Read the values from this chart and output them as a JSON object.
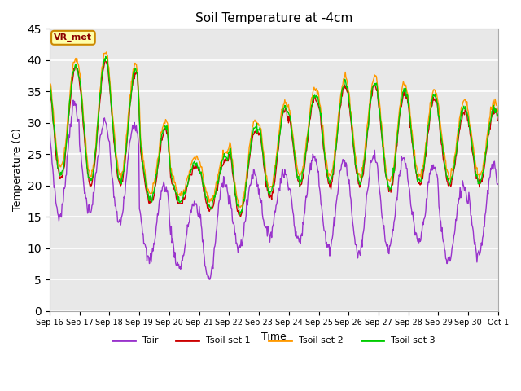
{
  "title": "Soil Temperature at -4cm",
  "xlabel": "Time",
  "ylabel": "Temperature (C)",
  "ylim": [
    0,
    45
  ],
  "annotation": "VR_met",
  "line_colors": {
    "Tair": "#9933cc",
    "Tsoil set 1": "#cc0000",
    "Tsoil set 2": "#ff9900",
    "Tsoil set 3": "#00cc00"
  },
  "xtick_labels": [
    "Sep 16",
    "Sep 17",
    "Sep 18",
    "Sep 19",
    "Sep 20",
    "Sep 21",
    "Sep 22",
    "Sep 23",
    "Sep 24",
    "Sep 25",
    "Sep 26",
    "Sep 27",
    "Sep 28",
    "Sep 29",
    "Sep 30",
    "Oct 1"
  ],
  "ytick_vals": [
    0,
    5,
    10,
    15,
    20,
    25,
    30,
    35,
    40,
    45
  ],
  "n_days": 15,
  "figsize": [
    6.4,
    4.8
  ],
  "dpi": 100
}
